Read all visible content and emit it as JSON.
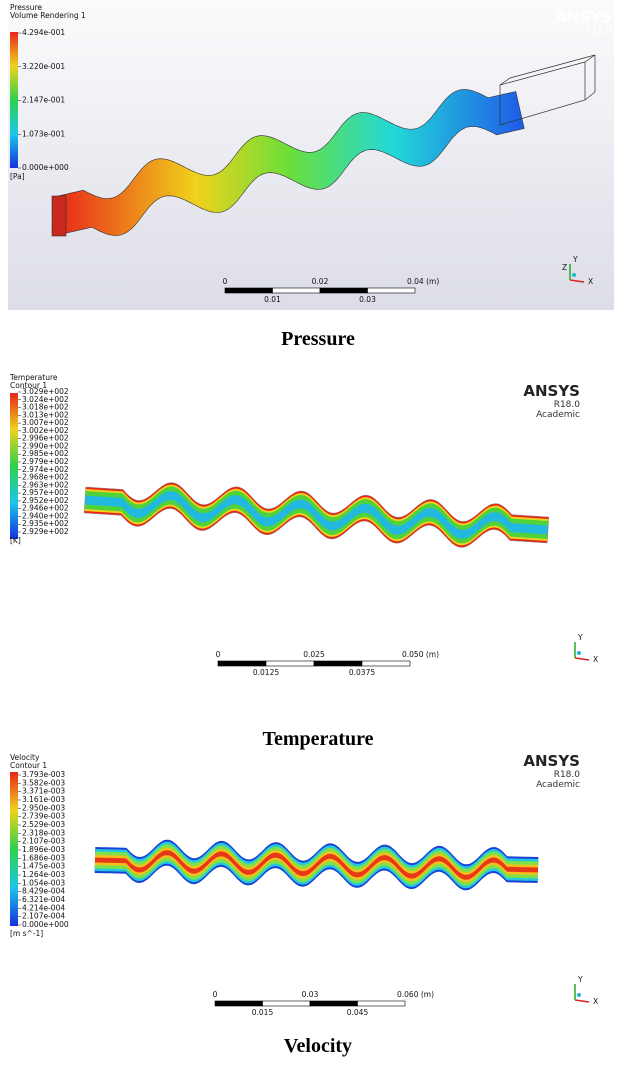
{
  "panels": [
    {
      "legend_title": "Pressure",
      "legend_subtitle": "Volume Rendering 1",
      "legend_values": [
        "4.294e-001",
        "3.220e-001",
        "2.147e-001",
        "1.073e-001",
        "0.000e+000"
      ],
      "unit": "[Pa]",
      "brand": "ANSYS",
      "version": "R15.0",
      "scale_top": [
        "0",
        "0.02",
        "0.04 (m)"
      ],
      "scale_bottom": [
        "0.01",
        "0.03"
      ],
      "axes": [
        "X",
        "Y",
        "Z"
      ],
      "caption": "Pressure"
    },
    {
      "legend_title": "Temperature",
      "legend_subtitle": "Contour 1",
      "legend_values": [
        "3.029e+002",
        "3.024e+002",
        "3.018e+002",
        "3.013e+002",
        "3.007e+002",
        "3.002e+002",
        "2.996e+002",
        "2.990e+002",
        "2.985e+002",
        "2.979e+002",
        "2.974e+002",
        "2.968e+002",
        "2.963e+002",
        "2.957e+002",
        "2.952e+002",
        "2.946e+002",
        "2.940e+002",
        "2.935e+002",
        "2.929e+002"
      ],
      "unit": "[K]",
      "brand": "ANSYS",
      "version": "R18.0",
      "edition": "Academic",
      "scale_top": [
        "0",
        "0.025",
        "0.050 (m)"
      ],
      "scale_bottom": [
        "0.0125",
        "0.0375"
      ],
      "axes": [
        "X",
        "Y"
      ],
      "caption": "Temperature"
    },
    {
      "legend_title": "Velocity",
      "legend_subtitle": "Contour 1",
      "legend_values": [
        "3.793e-003",
        "3.582e-003",
        "3.371e-003",
        "3.161e-003",
        "2.950e-003",
        "2.739e-003",
        "2.529e-003",
        "2.318e-003",
        "2.107e-003",
        "1.896e-003",
        "1.686e-003",
        "1.475e-003",
        "1.264e-003",
        "1.054e-003",
        "8.429e-004",
        "6.321e-004",
        "4.214e-004",
        "2.107e-004",
        "0.000e+000"
      ],
      "unit": "[m s^-1]",
      "brand": "ANSYS",
      "version": "R18.0",
      "edition": "Academic",
      "scale_top": [
        "0",
        "0.03",
        "0.060 (m)"
      ],
      "scale_bottom": [
        "0.015",
        "0.045"
      ],
      "axes": [
        "X",
        "Y"
      ],
      "caption": "Velocity"
    }
  ]
}
